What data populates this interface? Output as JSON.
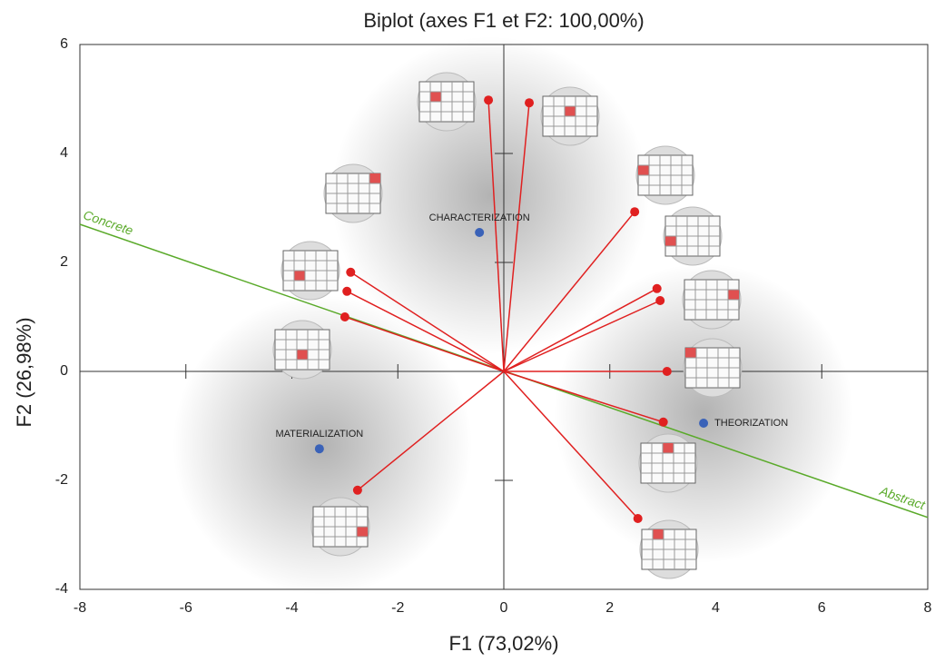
{
  "chart_data": {
    "type": "biplot",
    "title": "Biplot (axes F1 et F2: 100,00%)",
    "x_label": "F1 (73,02%)",
    "y_label": "F2 (26,98%)",
    "xlim": [
      -8,
      8
    ],
    "ylim": [
      -4,
      6
    ],
    "xticks": [
      -8,
      -6,
      -4,
      -2,
      0,
      2,
      4,
      6,
      8
    ],
    "yticks": [
      -4,
      -2,
      0,
      2,
      4,
      6
    ],
    "vectors": {
      "color": "#e02020",
      "x": [
        -0.29,
        0.48,
        2.47,
        -2.89,
        -2.96,
        -3.0,
        2.89,
        2.95,
        3.08,
        3.01,
        -2.76,
        2.53
      ],
      "y": [
        4.98,
        4.93,
        2.93,
        1.82,
        1.47,
        1.0,
        1.52,
        1.3,
        0,
        -0.93,
        -2.18,
        -2.7
      ]
    },
    "observations": {
      "color": "#3a62b8",
      "labels": [
        "CHARACTERIZATION",
        "MATERIALIZATION",
        "THEORIZATION"
      ],
      "x": [
        -0.46,
        -3.48,
        3.77
      ],
      "y": [
        2.55,
        -1.42,
        -0.95
      ]
    },
    "axis_line": {
      "color": "#5aaa2a",
      "x": [
        -8,
        8
      ],
      "y": [
        2.7,
        -2.68
      ],
      "start_label": "Concrete",
      "end_label": "Abstract"
    }
  }
}
